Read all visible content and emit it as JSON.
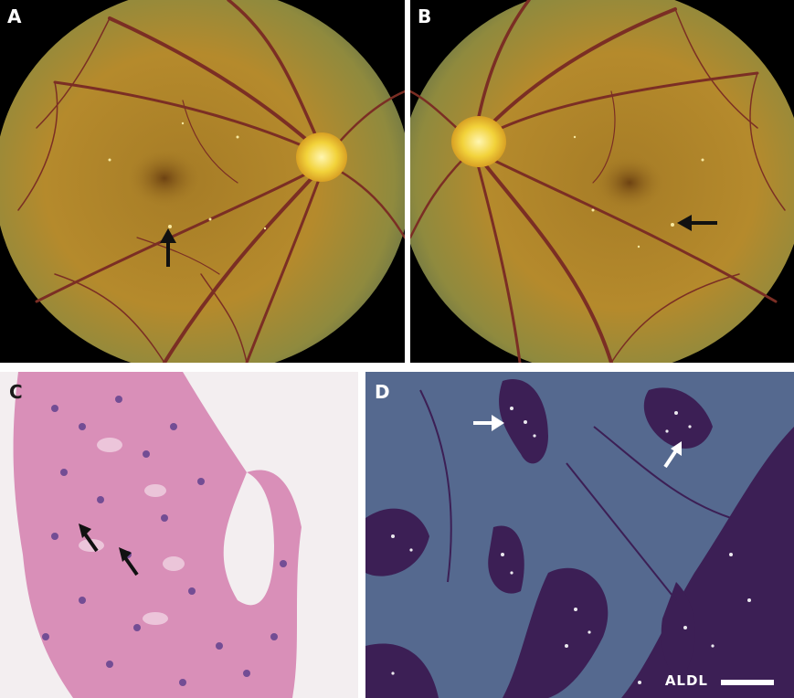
{
  "figure": {
    "panels": [
      {
        "id": "A",
        "label": "A",
        "content": "fundus-photo-right-eye"
      },
      {
        "id": "B",
        "label": "B",
        "content": "fundus-photo-left-eye"
      },
      {
        "id": "C",
        "label": "C",
        "content": "histology-he-stain"
      },
      {
        "id": "D",
        "label": "D",
        "content": "polarized-light-microscopy"
      }
    ],
    "scale_bar_text": "ALDL",
    "colors": {
      "fundus_background": "#b58a2c",
      "optic_disc": "#f2d23a",
      "vessel": "#7b2e24",
      "histology_tissue": "#d98fb8",
      "histology_background": "#f3eef0",
      "polarized_background": "#55698f",
      "polarized_tissue": "#3c1f55"
    },
    "icons": [
      "arrow-up-icon",
      "arrow-left-icon",
      "arrow-diagonal-icon"
    ]
  }
}
